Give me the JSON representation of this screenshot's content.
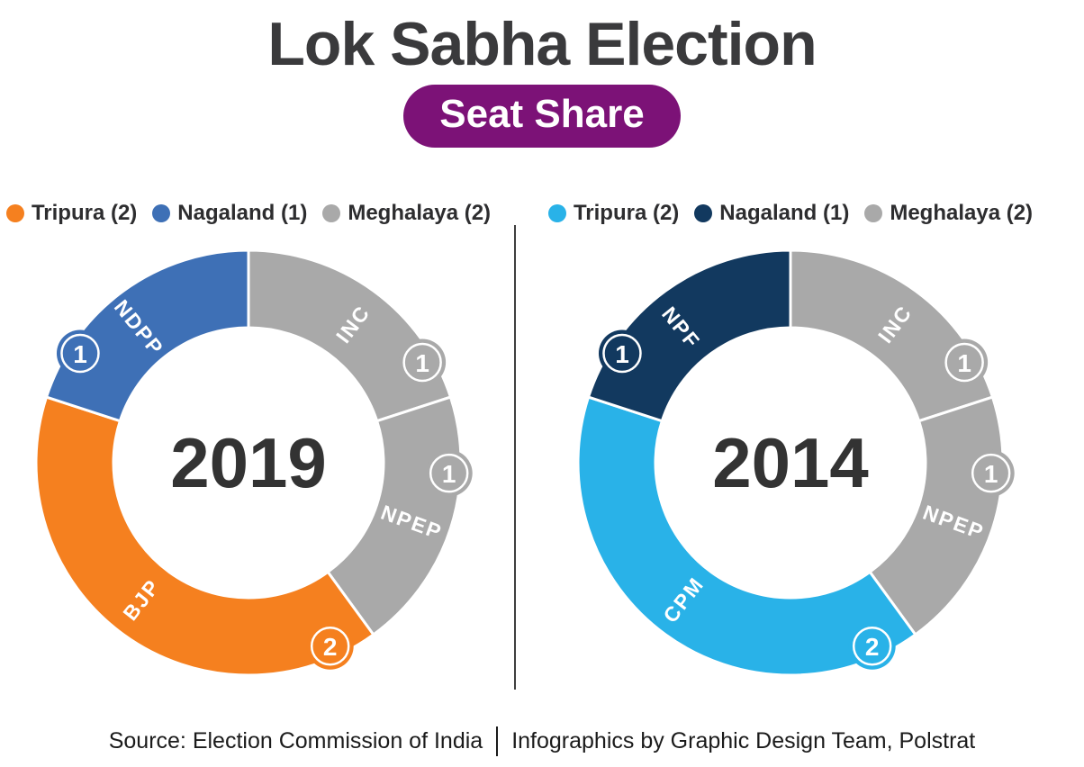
{
  "page": {
    "title": "Lok Sabha Election",
    "subtitle_badge": "Seat Share",
    "source": {
      "left": "Source: Election Commission of India",
      "separator": "|",
      "right": "Infographics by Graphic Design Team, Polstrat"
    }
  },
  "colors": {
    "title_text": "#3a3a3c",
    "pill_bg": "#7c1277",
    "pill_text": "#ffffff",
    "year_text": "#333333",
    "legend_text": "#2d2d2f",
    "source_text": "#1b1b1b",
    "divider": "#3f3f3f",
    "background": "#ffffff",
    "orange": "#f5801f",
    "blue": "#3e70b6",
    "gray": "#a9a9a9",
    "light_blue": "#29b2e8",
    "navy": "#12395f"
  },
  "chart_data": [
    {
      "type": "pie",
      "variant": "donut",
      "center_label": "2019",
      "units": "seats",
      "total_seats": 5,
      "legend": [
        {
          "label": "Tripura (2)",
          "color": "#f5801f"
        },
        {
          "label": "Nagaland (1)",
          "color": "#3e70b6"
        },
        {
          "label": "Meghalaya (2)",
          "color": "#a9a9a9"
        }
      ],
      "segments": [
        {
          "party": "INC",
          "state": "Meghalaya",
          "seats": 1,
          "color": "#a9a9a9",
          "start_angle": 0,
          "end_angle": 72,
          "label_angle": 37,
          "badge_angle": 60
        },
        {
          "party": "NPEP",
          "state": "Meghalaya",
          "seats": 1,
          "color": "#a9a9a9",
          "start_angle": 72,
          "end_angle": 144,
          "label_angle": 110,
          "badge_angle": 93
        },
        {
          "party": "BJP",
          "state": "Tripura",
          "seats": 2,
          "color": "#f5801f",
          "start_angle": 144,
          "end_angle": 288,
          "label_angle": 218,
          "badge_angle": 156
        },
        {
          "party": "NDPP",
          "state": "Nagaland",
          "seats": 1,
          "color": "#3e70b6",
          "start_angle": 288,
          "end_angle": 360,
          "label_angle": 321,
          "badge_angle": 303
        }
      ]
    },
    {
      "type": "pie",
      "variant": "donut",
      "center_label": "2014",
      "units": "seats",
      "total_seats": 5,
      "legend": [
        {
          "label": "Tripura (2)",
          "color": "#29b2e8"
        },
        {
          "label": "Nagaland (1)",
          "color": "#12395f"
        },
        {
          "label": "Meghalaya (2)",
          "color": "#a9a9a9"
        }
      ],
      "segments": [
        {
          "party": "INC",
          "state": "Meghalaya",
          "seats": 1,
          "color": "#a9a9a9",
          "start_angle": 0,
          "end_angle": 72,
          "label_angle": 37,
          "badge_angle": 60
        },
        {
          "party": "NPEP",
          "state": "Meghalaya",
          "seats": 1,
          "color": "#a9a9a9",
          "start_angle": 72,
          "end_angle": 144,
          "label_angle": 110,
          "badge_angle": 93
        },
        {
          "party": "CPM",
          "state": "Tripura",
          "seats": 2,
          "color": "#29b2e8",
          "start_angle": 144,
          "end_angle": 288,
          "label_angle": 218,
          "badge_angle": 156
        },
        {
          "party": "NPF",
          "state": "Nagaland",
          "seats": 1,
          "color": "#12395f",
          "start_angle": 288,
          "end_angle": 360,
          "label_angle": 321,
          "badge_angle": 303
        }
      ]
    }
  ]
}
